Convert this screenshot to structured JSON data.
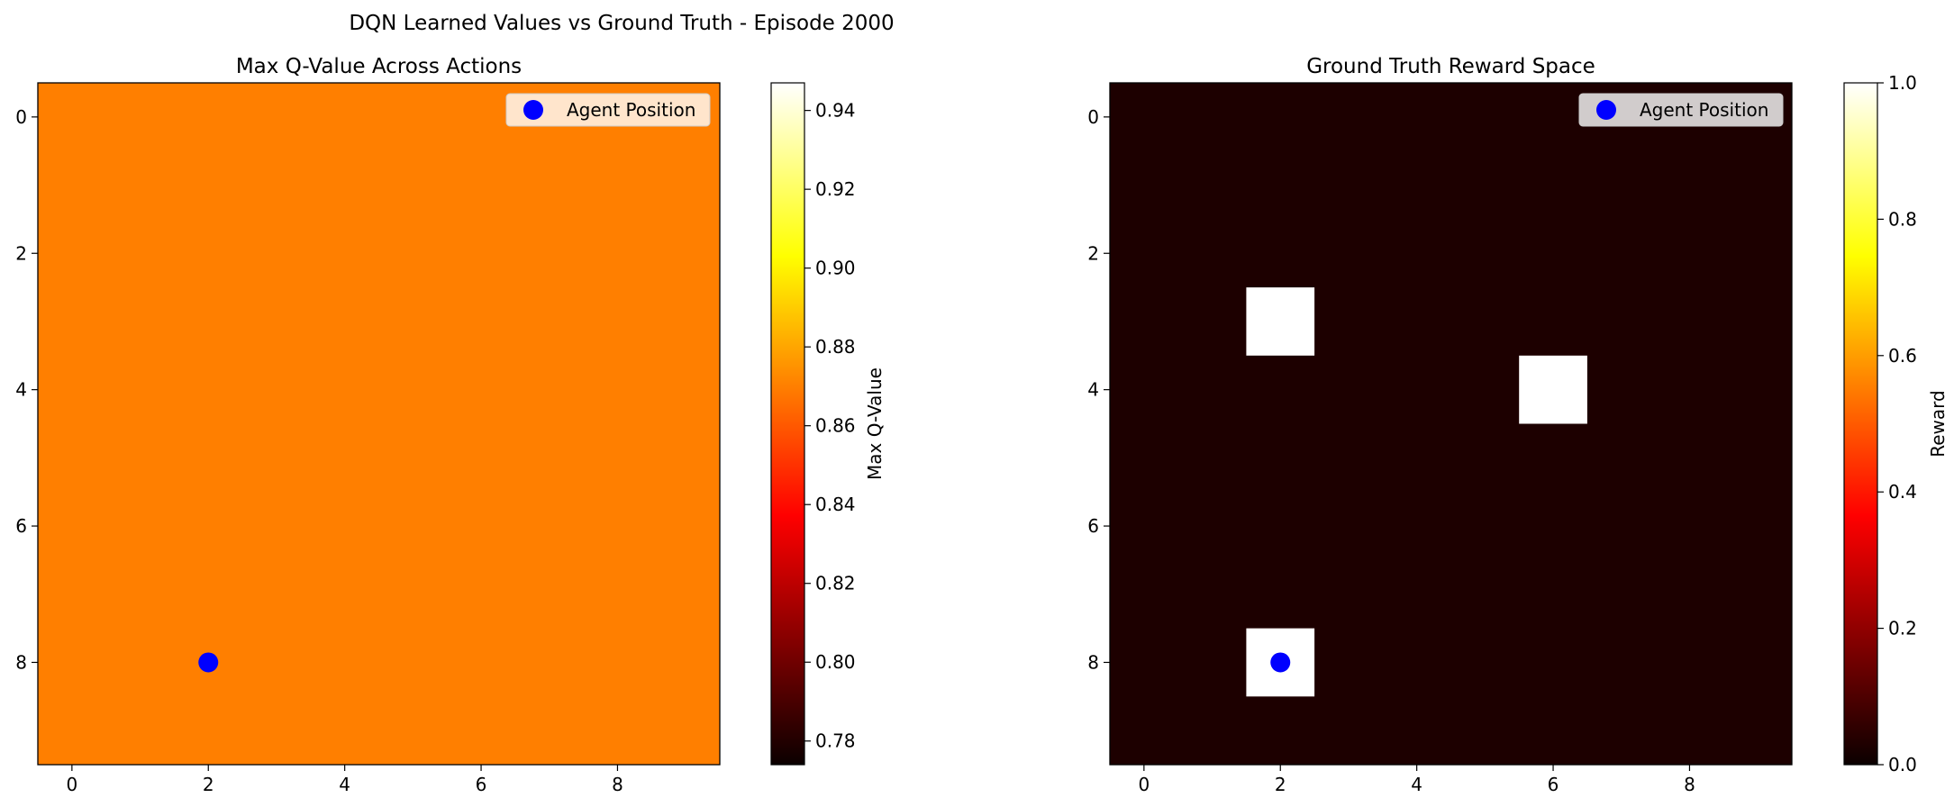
{
  "figure": {
    "suptitle": "DQN Learned Values vs Ground Truth - Episode 2000"
  },
  "chart_data": [
    {
      "type": "heatmap",
      "title": "Max Q-Value Across Actions",
      "grid_shape": [
        10,
        10
      ],
      "x_ticks": [
        0,
        2,
        4,
        6,
        8
      ],
      "y_ticks": [
        0,
        2,
        4,
        6,
        8
      ],
      "xlim": [
        -0.5,
        9.5
      ],
      "ylim": [
        9.5,
        -0.5
      ],
      "fill_value": 0.87,
      "highlight_cells": [],
      "colormap": "hot",
      "colorbar": {
        "label": "Max Q-Value",
        "min": 0.774,
        "max": 0.947,
        "ticks": [
          0.78,
          0.8,
          0.82,
          0.84,
          0.86,
          0.88,
          0.9,
          0.92,
          0.94
        ],
        "tick_labels": [
          "0.78",
          "0.80",
          "0.82",
          "0.84",
          "0.86",
          "0.88",
          "0.90",
          "0.92",
          "0.94"
        ]
      },
      "agent": {
        "x": 2,
        "y": 8,
        "color": "#0000ff"
      },
      "legend": {
        "label": "Agent Position",
        "placement": "upper right"
      }
    },
    {
      "type": "heatmap",
      "title": "Ground Truth Reward Space",
      "grid_shape": [
        10,
        10
      ],
      "x_ticks": [
        0,
        2,
        4,
        6,
        8
      ],
      "y_ticks": [
        0,
        2,
        4,
        6,
        8
      ],
      "xlim": [
        -0.5,
        9.5
      ],
      "ylim": [
        9.5,
        -0.5
      ],
      "fill_value": 0.0,
      "highlight_cells": [
        {
          "x": 2,
          "y": 3,
          "value": 1.0
        },
        {
          "x": 6,
          "y": 4,
          "value": 1.0
        },
        {
          "x": 2,
          "y": 8,
          "value": 1.0
        }
      ],
      "colormap": "hot",
      "colorbar": {
        "label": "Reward",
        "min": 0.0,
        "max": 1.0,
        "ticks": [
          0.0,
          0.2,
          0.4,
          0.6,
          0.8,
          1.0
        ],
        "tick_labels": [
          "0.0",
          "0.2",
          "0.4",
          "0.6",
          "0.8",
          "1.0"
        ]
      },
      "agent": {
        "x": 2,
        "y": 8,
        "color": "#0000ff"
      },
      "legend": {
        "label": "Agent Position",
        "placement": "upper right"
      }
    }
  ]
}
